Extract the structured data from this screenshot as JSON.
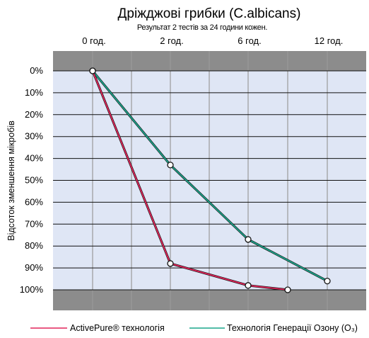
{
  "chart_data": {
    "type": "line",
    "title": "Дріжджові грибки (C.albicans)",
    "subtitle": "Результат 2 тестів за 24 години кожен.",
    "ylabel": "Відсоток зменшення мікробів",
    "xlabel": "",
    "x_tick_labels": [
      "0 год.",
      "2 год.",
      "6 год.",
      "12 год."
    ],
    "y_tick_labels": [
      "0%",
      "10%",
      "20%",
      "30%",
      "40%",
      "50%",
      "60%",
      "70%",
      "80%",
      "90%",
      "100%"
    ],
    "ylim": [
      0,
      100
    ],
    "y_inverted": true,
    "legend_position": "bottom",
    "series": [
      {
        "name": "ActivePure® технологія",
        "color": "#e2245a",
        "points": [
          {
            "x": 0,
            "y": 0
          },
          {
            "x": 2,
            "y": 88
          },
          {
            "x": 6,
            "y": 98
          },
          {
            "x": 9,
            "y": 100
          }
        ]
      },
      {
        "name": "Технологія Генерації Озону (O₃)",
        "color": "#1aa68c",
        "points": [
          {
            "x": 0,
            "y": 0
          },
          {
            "x": 2,
            "y": 43
          },
          {
            "x": 6,
            "y": 77
          },
          {
            "x": 12,
            "y": 96
          }
        ]
      }
    ],
    "colors": {
      "band": "#8c8c8c",
      "plot_bg": "#dfe6f5",
      "grid": "#111111",
      "vgrid": "#9a9a9a",
      "marker_fill": "#ffffff"
    }
  }
}
